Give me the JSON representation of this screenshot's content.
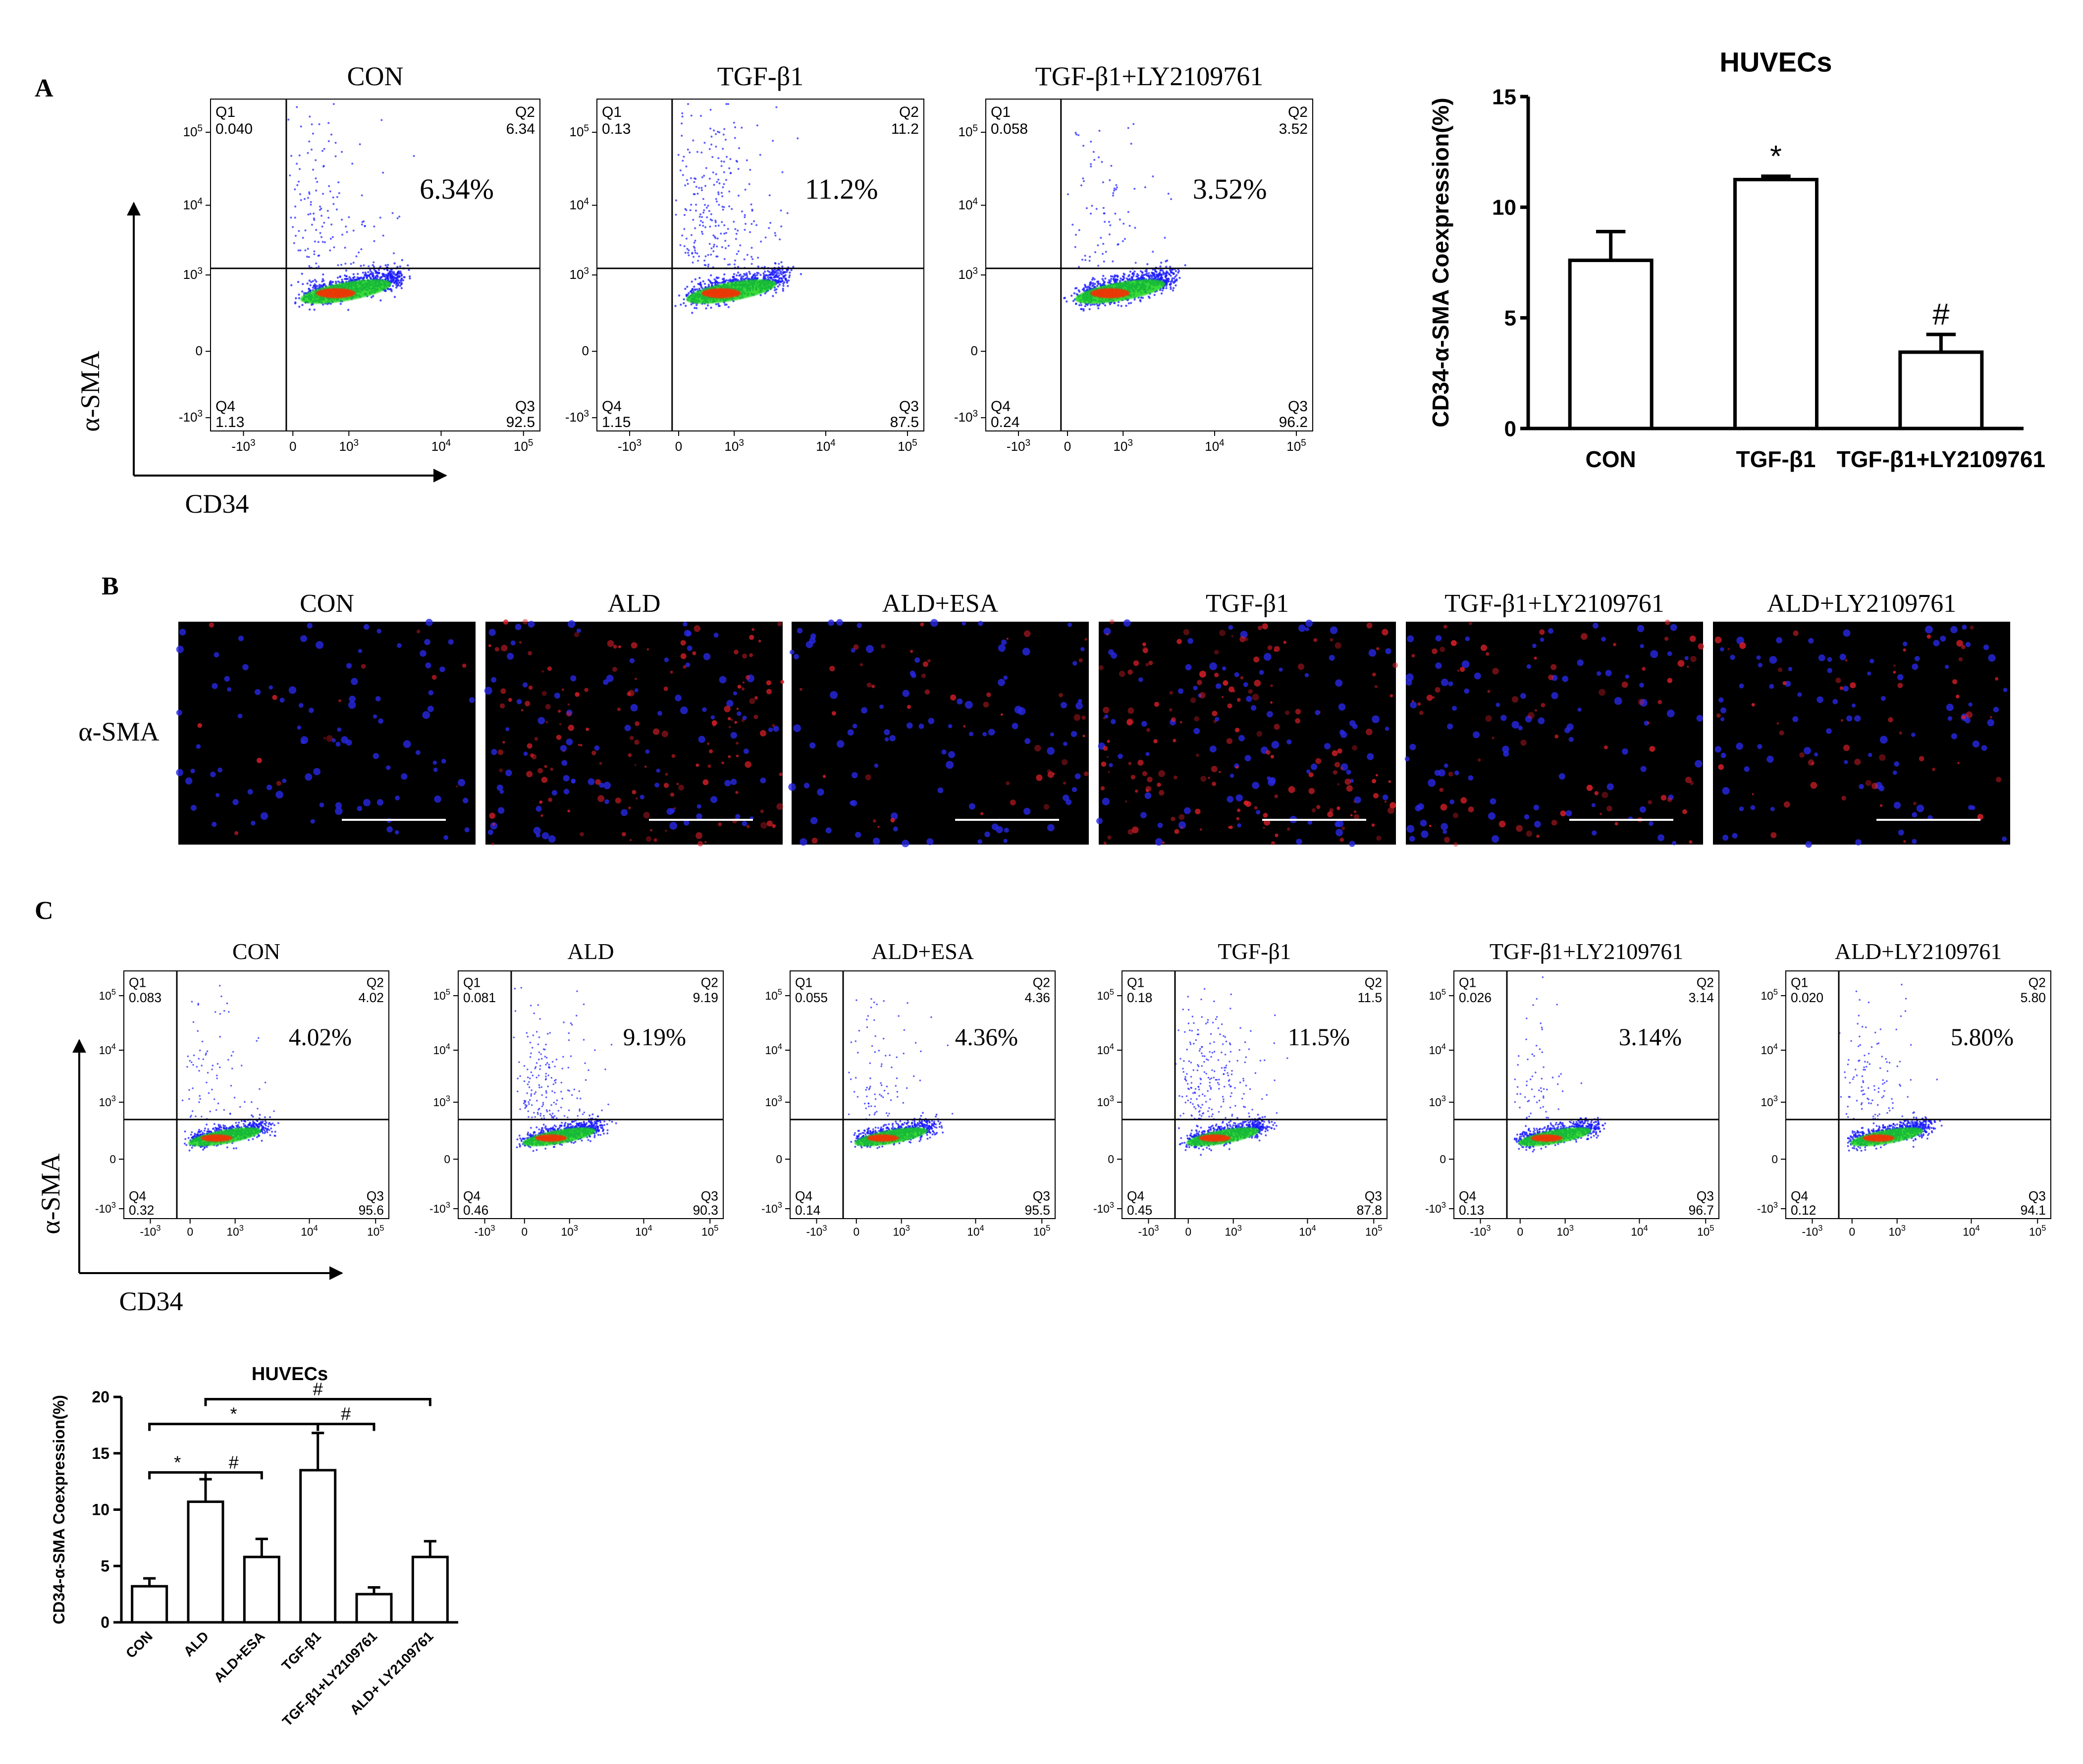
{
  "panel_a": {
    "letter": "A",
    "axis_y": "α-SMA",
    "axis_x": "CD34",
    "plots": [
      {
        "title": "CON",
        "big": "6.34%",
        "q1": "0.040",
        "q2": "6.34",
        "q3": "92.5",
        "q4": "1.13"
      },
      {
        "title": "TGF-β1",
        "big": "11.2%",
        "q1": "0.13",
        "q2": "11.2",
        "q3": "87.5",
        "q4": "1.15"
      },
      {
        "title": "TGF-β1+LY2109761",
        "big": "3.52%",
        "q1": "0.058",
        "q2": "3.52",
        "q3": "96.2",
        "q4": "0.24"
      }
    ]
  },
  "panel_b": {
    "letter": "B",
    "row_label": "α-SMA",
    "images": [
      "CON",
      "ALD",
      "ALD+ESA",
      "TGF-β1",
      "TGF-β1+LY2109761",
      "ALD+LY2109761"
    ]
  },
  "panel_c": {
    "letter": "C",
    "axis_y": "α-SMA",
    "axis_x": "CD34",
    "plots": [
      {
        "title": "CON",
        "big": "4.02%",
        "q1": "0.083",
        "q2": "4.02",
        "q3": "95.6",
        "q4": "0.32"
      },
      {
        "title": "ALD",
        "big": "9.19%",
        "q1": "0.081",
        "q2": "9.19",
        "q3": "90.3",
        "q4": "0.46"
      },
      {
        "title": "ALD+ESA",
        "big": "4.36%",
        "q1": "0.055",
        "q2": "4.36",
        "q3": "95.5",
        "q4": "0.14"
      },
      {
        "title": "TGF-β1",
        "big": "11.5%",
        "q1": "0.18",
        "q2": "11.5",
        "q3": "87.8",
        "q4": "0.45"
      },
      {
        "title": "TGF-β1+LY2109761",
        "big": "3.14%",
        "q1": "0.026",
        "q2": "3.14",
        "q3": "96.7",
        "q4": "0.13"
      },
      {
        "title": "ALD+LY2109761",
        "big": "5.80%",
        "q1": "0.020",
        "q2": "5.80",
        "q3": "94.1",
        "q4": "0.12"
      }
    ]
  },
  "flow_labels": {
    "q1": "Q1",
    "q2": "Q2",
    "q3": "Q3",
    "q4": "Q4",
    "y_ticks": [
      "10",
      "10",
      "10",
      "0",
      "-10"
    ],
    "y_exps": [
      "5",
      "4",
      "3",
      "",
      "3"
    ],
    "x_ticks": [
      "-10",
      "0",
      "10",
      "10",
      "10"
    ],
    "x_exps": [
      "3",
      "",
      "3",
      "4",
      "5"
    ]
  },
  "colors": {
    "density_low": "#1a1aff",
    "density_mid": "#19d419",
    "density_high": "#ff2a00",
    "fluor_red": "#e0202a",
    "fluor_blue": "#2828e6"
  },
  "chart_data": [
    {
      "type": "bar",
      "title": "HUVECs",
      "ylabel": "CD34-α-SMA Coexpression(%)",
      "categories": [
        "CON",
        "TGF-β1",
        "TGF-β1+LY2109761"
      ],
      "values": [
        7.6,
        11.25,
        3.45
      ],
      "errors": [
        1.3,
        0.15,
        0.8
      ],
      "ylim": [
        0,
        15
      ],
      "yticks": [
        "0",
        "5",
        "10",
        "15"
      ],
      "annotations": [
        "",
        "*",
        "#"
      ]
    },
    {
      "type": "bar",
      "title": "HUVECs",
      "ylabel": "CD34-α-SMA Coexpression(%)",
      "categories": [
        "CON",
        "ALD",
        "ALD+ESA",
        "TGF-β1",
        "TGF-β1+LY2109761",
        "ALD+ LY2109761"
      ],
      "values": [
        3.2,
        10.7,
        5.8,
        13.5,
        2.5,
        5.8
      ],
      "errors": [
        0.7,
        2.0,
        1.6,
        3.3,
        0.6,
        1.4
      ],
      "ylim": [
        0,
        20
      ],
      "yticks": [
        "0",
        "5",
        "10",
        "15",
        "20"
      ],
      "brackets": [
        {
          "from": "CON",
          "to": "ALD",
          "label": "*"
        },
        {
          "from": "ALD",
          "to": "ALD+ESA",
          "label": "#"
        },
        {
          "from": "CON",
          "to": "TGF-β1",
          "label": "*"
        },
        {
          "from": "TGF-β1",
          "to": "TGF-β1+LY2109761",
          "label": "#"
        },
        {
          "from": "ALD",
          "to": "ALD+ LY2109761",
          "label": "#"
        }
      ]
    }
  ]
}
